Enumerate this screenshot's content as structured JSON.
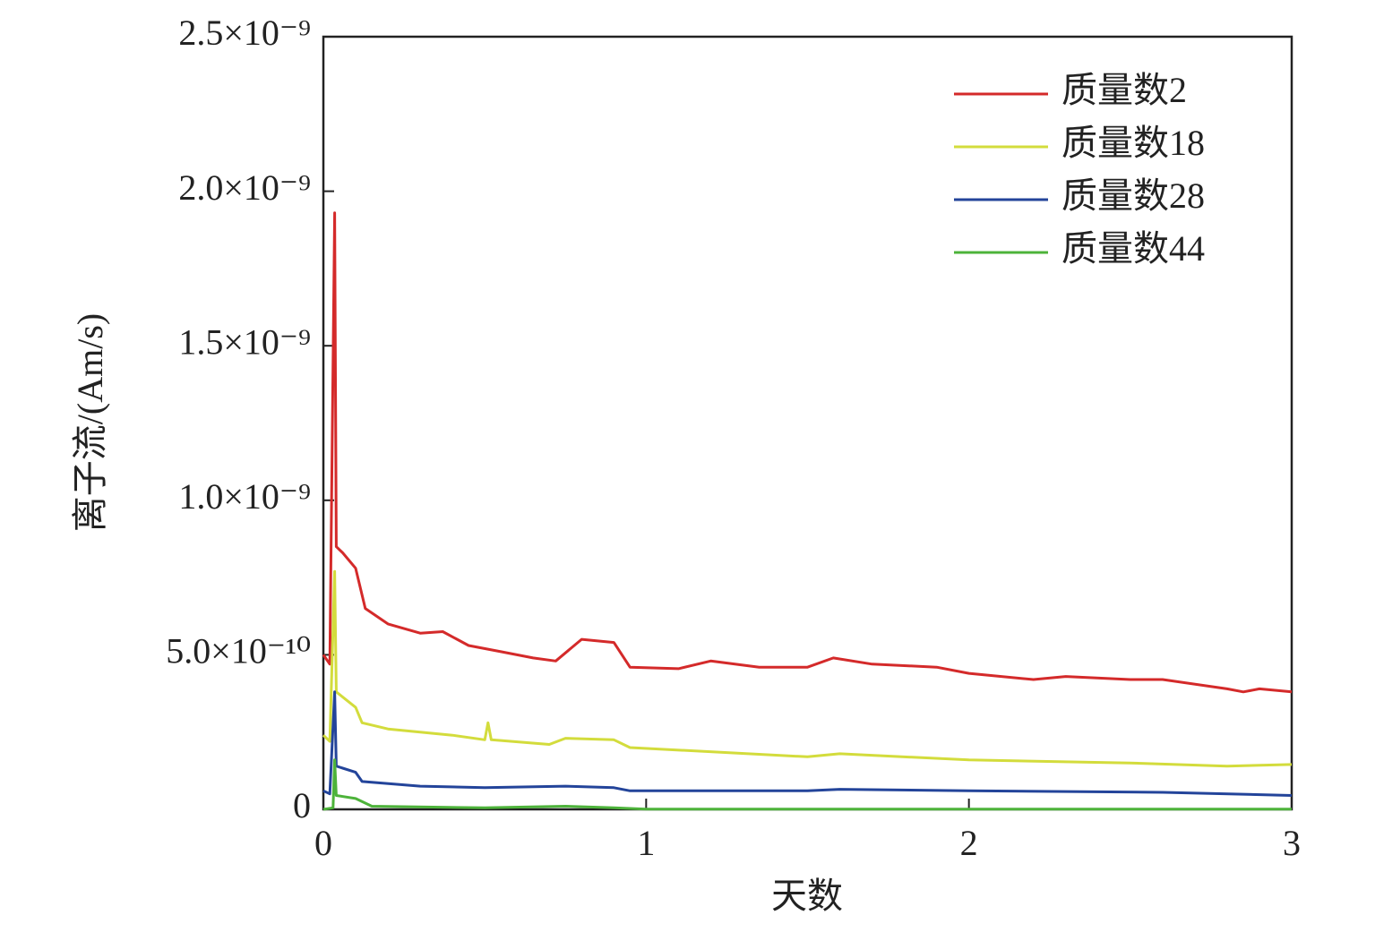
{
  "chart_data": {
    "type": "line",
    "x_label": "天数",
    "y_label": "离子流/(Am/s)",
    "xlim": [
      0,
      3
    ],
    "xticks": [
      0,
      1,
      2,
      3
    ],
    "ylim": [
      0,
      2.5e-09
    ],
    "yticks": [
      0,
      {
        "value": 5e-10,
        "label": "5.0×10⁻¹⁰"
      },
      {
        "value": 1e-09,
        "label": "1.0×10⁻⁹"
      },
      {
        "value": 1.5e-09,
        "label": "1.5×10⁻⁹"
      },
      {
        "value": 2e-09,
        "label": "2.0×10⁻⁹"
      },
      {
        "value": 2.5e-09,
        "label": "2.5×10⁻⁹"
      }
    ],
    "legend": "upper right",
    "series": [
      {
        "name": "质量数2",
        "color": "#d42a2a",
        "x": [
          0,
          0.02,
          0.035,
          0.04,
          0.06,
          0.1,
          0.13,
          0.2,
          0.3,
          0.37,
          0.45,
          0.55,
          0.65,
          0.72,
          0.8,
          0.9,
          0.95,
          1.1,
          1.2,
          1.35,
          1.5,
          1.58,
          1.7,
          1.9,
          2.0,
          2.2,
          2.3,
          2.5,
          2.6,
          2.8,
          2.85,
          2.9,
          3.0
        ],
        "values": [
          5e-10,
          4.7e-10,
          1.93e-09,
          8.5e-10,
          8.3e-10,
          7.8e-10,
          6.5e-10,
          6e-10,
          5.7e-10,
          5.75e-10,
          5.3e-10,
          5.1e-10,
          4.9e-10,
          4.8e-10,
          5.5e-10,
          5.4e-10,
          4.6e-10,
          4.55e-10,
          4.8e-10,
          4.6e-10,
          4.6e-10,
          4.9e-10,
          4.7e-10,
          4.6e-10,
          4.4e-10,
          4.2e-10,
          4.3e-10,
          4.2e-10,
          4.2e-10,
          3.9e-10,
          3.8e-10,
          3.9e-10,
          3.8e-10
        ]
      },
      {
        "name": "质量数18",
        "color": "#d3dc3c",
        "x": [
          0,
          0.02,
          0.035,
          0.04,
          0.1,
          0.12,
          0.2,
          0.4,
          0.5,
          0.51,
          0.52,
          0.7,
          0.75,
          0.9,
          0.95,
          1.5,
          1.6,
          2.0,
          2.5,
          2.8,
          3.0
        ],
        "values": [
          2.4e-10,
          2.2e-10,
          7.7e-10,
          3.8e-10,
          3.3e-10,
          2.8e-10,
          2.6e-10,
          2.4e-10,
          2.25e-10,
          2.8e-10,
          2.25e-10,
          2.1e-10,
          2.3e-10,
          2.25e-10,
          2e-10,
          1.7e-10,
          1.8e-10,
          1.6e-10,
          1.5e-10,
          1.4e-10,
          1.45e-10
        ]
      },
      {
        "name": "质量数28",
        "color": "#23449a",
        "x": [
          0,
          0.02,
          0.035,
          0.04,
          0.1,
          0.12,
          0.3,
          0.5,
          0.75,
          0.9,
          0.95,
          1.5,
          1.6,
          2.0,
          2.6,
          3.0
        ],
        "values": [
          6e-11,
          5e-11,
          3.8e-10,
          1.4e-10,
          1.2e-10,
          9e-11,
          7.5e-11,
          7e-11,
          7.5e-11,
          7e-11,
          6e-11,
          6e-11,
          6.5e-11,
          6e-11,
          5.5e-11,
          4.5e-11
        ]
      },
      {
        "name": "质量数44",
        "color": "#4db33a",
        "x": [
          0,
          0.03,
          0.035,
          0.04,
          0.1,
          0.15,
          0.5,
          0.75,
          0.9,
          1.0,
          3.0
        ],
        "values": [
          0,
          5e-12,
          1.6e-10,
          4.5e-11,
          3.5e-11,
          1e-11,
          5e-12,
          1e-11,
          5e-12,
          1e-12,
          1e-12
        ]
      }
    ]
  }
}
